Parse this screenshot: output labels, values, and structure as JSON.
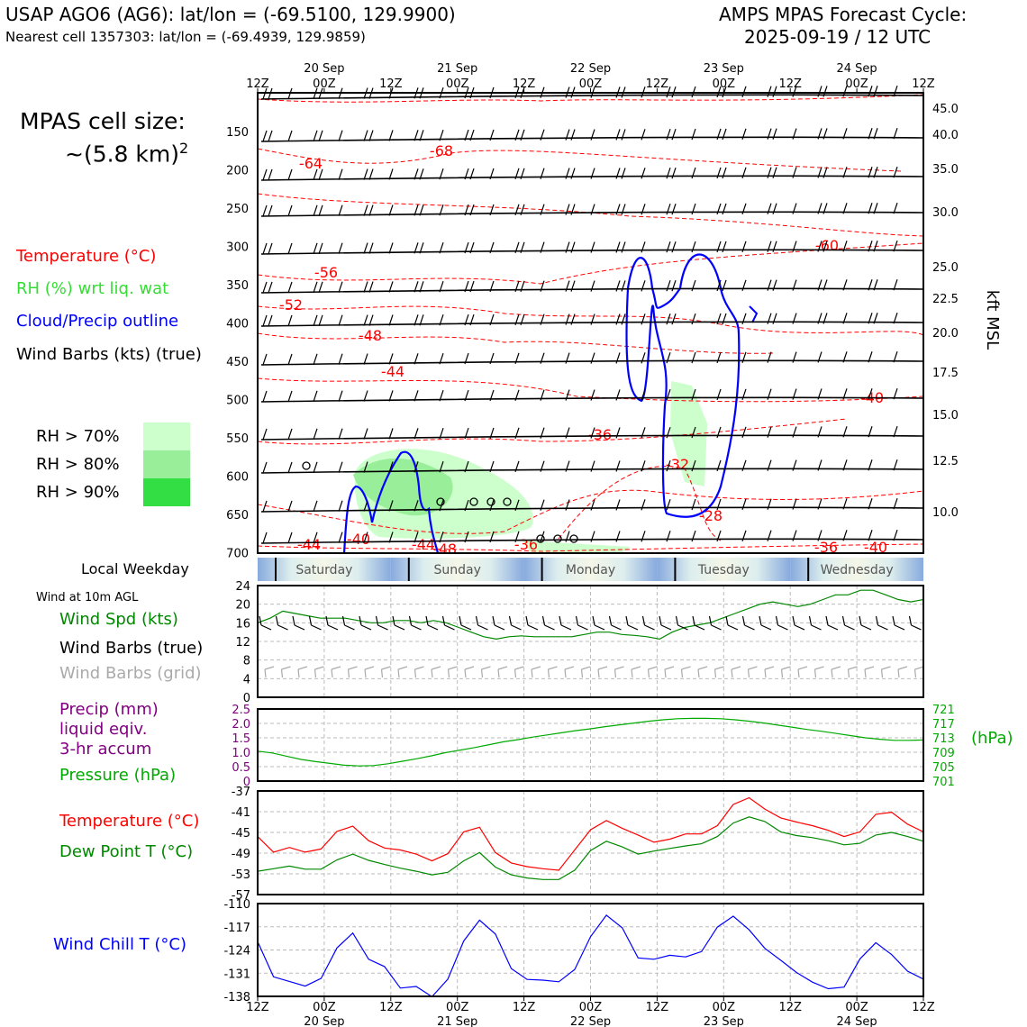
{
  "header": {
    "station": "USAP AGO6 (AG6): lat/lon = (-69.5100, 129.9900)",
    "nearest": "Nearest cell 1357303: lat/lon = (-69.4939, 129.9859)",
    "cycle_line1": "AMPS MPAS Forecast Cycle:",
    "cycle_line2": "2025-09-19 / 12 UTC"
  },
  "cell_size": {
    "line1": "MPAS cell size:",
    "line2": "~(5.8 km)",
    "sup": "2"
  },
  "legend": {
    "temperature": "Temperature (°C)",
    "rh": "RH (%) wrt liq. wat",
    "cloud": "Cloud/Precip outline",
    "wind": "Wind Barbs (kts) (true)",
    "rh70": "RH > 70%",
    "rh80": "RH > 80%",
    "rh90": "RH > 90%"
  },
  "colors": {
    "temp": "#ff0000",
    "rh70": "#ccffcc",
    "rh80": "#99ee99",
    "rh90": "#33dd44",
    "cloud": "#0000ff",
    "wind_speed": "#008800",
    "dewpoint": "#008800",
    "pressure": "#00aa00",
    "precip": "#800080",
    "wind_chill": "#0000ff",
    "grid_barb": "#aaaaaa"
  },
  "time_axis": {
    "hour_labels": [
      "12Z",
      "00Z",
      "12Z",
      "00Z",
      "12Z",
      "00Z",
      "12Z",
      "00Z",
      "12Z",
      "00Z",
      "12Z"
    ],
    "date_labels": [
      "20 Sep",
      "21 Sep",
      "22 Sep",
      "23 Sep",
      "24 Sep"
    ]
  },
  "weekday_bar": {
    "label": "Local Weekday",
    "days": [
      "Saturday",
      "Sunday",
      "Monday",
      "Tuesday",
      "Wednesday"
    ]
  },
  "wind_panel_labels": {
    "title": "Wind at 10m AGL",
    "speed": "Wind Spd (kts)",
    "barbs_true": "Wind Barbs (true)",
    "barbs_grid": "Wind Barbs (grid)"
  },
  "precip_panel_labels": {
    "line1": "Precip (mm)",
    "line2": "liquid eqiv.",
    "line3": "3-hr accum",
    "pressure": "Pressure (hPa)",
    "unit_right": "(hPa)"
  },
  "temp_panel_labels": {
    "temp": "Temperature (°C)",
    "dew": "Dew Point T (°C)"
  },
  "chill_panel_labels": {
    "chill": "Wind Chill T (°C)"
  },
  "chart_data": [
    {
      "type": "contour",
      "title": "",
      "ylabel_right": "kft MSL",
      "y_left_ticks": [
        "150",
        "200",
        "250",
        "300",
        "350",
        "400",
        "450",
        "500",
        "550",
        "600",
        "650",
        "700"
      ],
      "y_right_ticks": [
        "45.0",
        "40.0",
        "35.0",
        "30.0",
        "25.0",
        "22.5",
        "20.0",
        "17.5",
        "15.0",
        "12.5",
        "10.0"
      ],
      "temperature_contour_labels": [
        "-68",
        "-64",
        "-60",
        "-56",
        "-52",
        "-48",
        "-44",
        "-40",
        "-36",
        "-32",
        "-28",
        "-44",
        "-40",
        "-44",
        "-48",
        "-36",
        "-36",
        "-40"
      ]
    },
    {
      "type": "line",
      "name": "wind10m",
      "y_ticks": [
        "24",
        "20",
        "16",
        "12",
        "8",
        "4",
        "0"
      ],
      "ylim": [
        0,
        24
      ],
      "series": [
        {
          "name": "Wind Spd (kts)",
          "values": [
            16,
            17,
            18.5,
            18,
            17.5,
            17,
            17,
            17,
            16.5,
            16,
            16,
            16.5,
            16.5,
            16,
            16.5,
            16,
            15,
            14,
            13,
            12.5,
            13,
            13.2,
            13,
            13,
            13,
            13,
            13.5,
            14,
            14,
            13.5,
            13.3,
            13,
            12.5,
            14,
            15,
            15.5,
            16,
            17,
            18,
            19,
            20,
            20.5,
            20,
            19.5,
            20,
            21,
            22,
            22,
            23,
            23,
            22,
            21,
            20.5,
            21
          ]
        }
      ]
    },
    {
      "type": "line",
      "name": "precip_pressure",
      "y_left_ticks": [
        "2.5",
        "2.0",
        "1.5",
        "1.0",
        "0.5",
        "0"
      ],
      "y_right_ticks": [
        "721",
        "717",
        "713",
        "709",
        "705",
        "701"
      ],
      "ylim_precip": [
        0,
        2.5
      ],
      "ylim_pressure": [
        701,
        721
      ],
      "series": [
        {
          "name": "Pressure (hPa)",
          "values": [
            709.3,
            708.8,
            707.9,
            707.0,
            706.4,
            705.9,
            705.4,
            705.2,
            705.3,
            705.8,
            706.5,
            707.2,
            708.0,
            708.9,
            709.6,
            710.3,
            711.1,
            711.9,
            712.5,
            713.2,
            713.8,
            714.4,
            715.0,
            715.5,
            716.1,
            716.6,
            717.1,
            717.6,
            718.0,
            718.3,
            718.4,
            718.4,
            718.3,
            718.0,
            717.6,
            717.1,
            716.5,
            715.9,
            715.3,
            714.8,
            714.2,
            713.6,
            713.0,
            712.6,
            712.3,
            712.3,
            712.4
          ]
        }
      ]
    },
    {
      "type": "line",
      "name": "temp_dew",
      "y_ticks": [
        "-37",
        "-41",
        "-45",
        "-49",
        "-53",
        "-57"
      ],
      "ylim": [
        -57,
        -37
      ],
      "series": [
        {
          "name": "Temperature (°C)",
          "values": [
            -45.8,
            -48.8,
            -47.9,
            -48.8,
            -48.2,
            -44.8,
            -43.8,
            -46.6,
            -48.0,
            -48.4,
            -49.2,
            -50.5,
            -49.1,
            -44.9,
            -44.0,
            -48.9,
            -50.9,
            -51.6,
            -52.0,
            -52.3,
            -48.4,
            -44.5,
            -42.7,
            -44.2,
            -45.5,
            -46.9,
            -46.3,
            -45.3,
            -45.3,
            -43.7,
            -39.6,
            -38.3,
            -40.5,
            -42.2,
            -43.0,
            -43.7,
            -44.6,
            -45.8,
            -44.9,
            -41.5,
            -41.1,
            -43.4,
            -44.9
          ]
        },
        {
          "name": "Dew Point T (°C)",
          "values": [
            -52.5,
            -52.0,
            -51.5,
            -52.1,
            -52.1,
            -50.3,
            -49.2,
            -50.4,
            -51.2,
            -51.9,
            -52.5,
            -53.2,
            -52.7,
            -50.5,
            -48.9,
            -51.7,
            -53.2,
            -53.8,
            -54.1,
            -54.1,
            -52.3,
            -48.5,
            -46.7,
            -47.8,
            -49.2,
            -48.6,
            -48.1,
            -47.6,
            -47.2,
            -45.8,
            -43.2,
            -42.0,
            -42.9,
            -44.9,
            -45.6,
            -46.0,
            -46.6,
            -47.4,
            -47.1,
            -45.5,
            -45.0,
            -45.8,
            -46.7
          ]
        }
      ]
    },
    {
      "type": "line",
      "name": "wind_chill",
      "y_ticks": [
        "-110",
        "-117",
        "-124",
        "-131",
        "-138"
      ],
      "ylim": [
        -138,
        -110
      ],
      "series": [
        {
          "name": "Wind Chill T (°C)",
          "values": [
            -121.5,
            -132.1,
            -133.5,
            -134.9,
            -132.6,
            -123.4,
            -118.9,
            -126.8,
            -129.0,
            -135.5,
            -135.0,
            -138.1,
            -132.8,
            -121.3,
            -115.0,
            -119.2,
            -129.6,
            -132.9,
            -133.1,
            -133.6,
            -129.9,
            -120.0,
            -113.5,
            -117.3,
            -126.4,
            -126.8,
            -125.6,
            -126.1,
            -124.5,
            -117.1,
            -113.8,
            -117.9,
            -123.5,
            -127.1,
            -130.8,
            -133.7,
            -135.7,
            -135.2,
            -126.7,
            -121.8,
            -125.4,
            -130.4,
            -132.8
          ]
        }
      ]
    }
  ]
}
